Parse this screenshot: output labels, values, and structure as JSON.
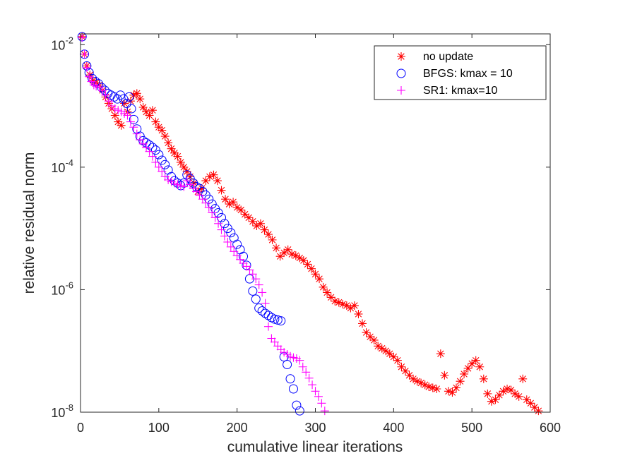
{
  "chart_data": {
    "type": "scatter",
    "title": "",
    "xlabel": "cumulative linear iterations",
    "ylabel": "relative residual norm",
    "xlim": [
      0,
      600
    ],
    "ylim": [
      1e-08,
      0.015
    ],
    "yscale": "log",
    "x_ticks": [
      0,
      100,
      200,
      300,
      400,
      500,
      600
    ],
    "x_tick_labels": [
      "0",
      "100",
      "200",
      "300",
      "400",
      "500",
      "600"
    ],
    "y_ticks": [
      {
        "value": 0.01,
        "base": "10",
        "exp": "-2"
      },
      {
        "value": 0.0001,
        "base": "10",
        "exp": "-4"
      },
      {
        "value": 1e-06,
        "base": "10",
        "exp": "-6"
      },
      {
        "value": 1e-08,
        "base": "10",
        "exp": "-8"
      }
    ],
    "grid": false,
    "legend_position": "top-right",
    "series": [
      {
        "name": "no update",
        "marker": "asterisk",
        "color": "#ff0000",
        "points": [
          [
            2,
            0.0135
          ],
          [
            5,
            0.007
          ],
          [
            8,
            0.0045
          ],
          [
            12,
            0.0032
          ],
          [
            16,
            0.0026
          ],
          [
            20,
            0.0024
          ],
          [
            24,
            0.0022
          ],
          [
            28,
            0.0018
          ],
          [
            32,
            0.0014
          ],
          [
            36,
            0.0011
          ],
          [
            40,
            0.0009
          ],
          [
            44,
            0.0007
          ],
          [
            48,
            0.00055
          ],
          [
            52,
            0.00048
          ],
          [
            56,
            0.0011
          ],
          [
            60,
            0.0008
          ],
          [
            64,
            0.0012
          ],
          [
            68,
            0.0015
          ],
          [
            72,
            0.0016
          ],
          [
            76,
            0.0013
          ],
          [
            80,
            0.00095
          ],
          [
            84,
            0.0008
          ],
          [
            88,
            0.0007
          ],
          [
            92,
            0.00085
          ],
          [
            96,
            0.00055
          ],
          [
            100,
            0.00045
          ],
          [
            104,
            0.0004
          ],
          [
            108,
            0.00032
          ],
          [
            112,
            0.00025
          ],
          [
            116,
            0.0002
          ],
          [
            120,
            0.00017
          ],
          [
            124,
            0.00015
          ],
          [
            128,
            0.00012
          ],
          [
            132,
            0.0001
          ],
          [
            136,
            8.5e-05
          ],
          [
            140,
            7e-05
          ],
          [
            145,
            5.5e-05
          ],
          [
            150,
            4e-05
          ],
          [
            155,
            4.5e-05
          ],
          [
            160,
            6e-05
          ],
          [
            165,
            7e-05
          ],
          [
            170,
            7.5e-05
          ],
          [
            175,
            6e-05
          ],
          [
            180,
            4.2e-05
          ],
          [
            185,
            3e-05
          ],
          [
            190,
            2.5e-05
          ],
          [
            195,
            2.7e-05
          ],
          [
            200,
            2.2e-05
          ],
          [
            205,
            2e-05
          ],
          [
            210,
            1.7e-05
          ],
          [
            215,
            1.5e-05
          ],
          [
            220,
            1.3e-05
          ],
          [
            225,
            1.1e-05
          ],
          [
            230,
            1.2e-05
          ],
          [
            235,
            9.5e-06
          ],
          [
            240,
            8e-06
          ],
          [
            245,
            6.5e-06
          ],
          [
            250,
            4.8e-06
          ],
          [
            255,
            3.5e-06
          ],
          [
            260,
            4e-06
          ],
          [
            265,
            4.5e-06
          ],
          [
            270,
            3.8e-06
          ],
          [
            275,
            3.6e-06
          ],
          [
            280,
            3.3e-06
          ],
          [
            285,
            3e-06
          ],
          [
            290,
            2.6e-06
          ],
          [
            295,
            2.2e-06
          ],
          [
            300,
            1.8e-06
          ],
          [
            305,
            1.5e-06
          ],
          [
            310,
            1.1e-06
          ],
          [
            315,
            9e-07
          ],
          [
            320,
            7.5e-07
          ],
          [
            325,
            6.5e-07
          ],
          [
            330,
            6.2e-07
          ],
          [
            335,
            5.8e-07
          ],
          [
            340,
            5.5e-07
          ],
          [
            345,
            5e-07
          ],
          [
            350,
            5.5e-07
          ],
          [
            355,
            4e-07
          ],
          [
            360,
            2.8e-07
          ],
          [
            365,
            2e-07
          ],
          [
            370,
            1.7e-07
          ],
          [
            375,
            1.5e-07
          ],
          [
            380,
            1.2e-07
          ],
          [
            385,
            1.1e-07
          ],
          [
            390,
            1e-07
          ],
          [
            395,
            9e-08
          ],
          [
            400,
            8e-08
          ],
          [
            405,
            7e-08
          ],
          [
            410,
            5.5e-08
          ],
          [
            415,
            4.7e-08
          ],
          [
            420,
            4e-08
          ],
          [
            425,
            3.5e-08
          ],
          [
            430,
            3.2e-08
          ],
          [
            435,
            3e-08
          ],
          [
            440,
            2.8e-08
          ],
          [
            445,
            2.6e-08
          ],
          [
            450,
            2.5e-08
          ],
          [
            455,
            2.4e-08
          ],
          [
            460,
            9e-08
          ],
          [
            465,
            4e-08
          ],
          [
            470,
            2.2e-08
          ],
          [
            475,
            2.1e-08
          ],
          [
            480,
            2.5e-08
          ],
          [
            485,
            3.2e-08
          ],
          [
            490,
            4.2e-08
          ],
          [
            495,
            5.2e-08
          ],
          [
            500,
            6.2e-08
          ],
          [
            505,
            7e-08
          ],
          [
            510,
            5.5e-08
          ],
          [
            515,
            3.5e-08
          ],
          [
            520,
            2e-08
          ],
          [
            525,
            1.5e-08
          ],
          [
            530,
            1.6e-08
          ],
          [
            535,
            1.9e-08
          ],
          [
            540,
            2.2e-08
          ],
          [
            545,
            2.4e-08
          ],
          [
            550,
            2.3e-08
          ],
          [
            555,
            2e-08
          ],
          [
            560,
            1.8e-08
          ],
          [
            565,
            3.5e-08
          ],
          [
            570,
            1.6e-08
          ],
          [
            575,
            1.4e-08
          ],
          [
            580,
            1.2e-08
          ],
          [
            585,
            1.05e-08
          ]
        ]
      },
      {
        "name": "BFGS: kmax = 10",
        "marker": "circle",
        "color": "#0000ff",
        "points": [
          [
            2,
            0.0135
          ],
          [
            5,
            0.007
          ],
          [
            8,
            0.0045
          ],
          [
            11,
            0.0035
          ],
          [
            15,
            0.0028
          ],
          [
            19,
            0.0025
          ],
          [
            23,
            0.0023
          ],
          [
            27,
            0.002
          ],
          [
            31,
            0.0018
          ],
          [
            35,
            0.0016
          ],
          [
            39,
            0.0015
          ],
          [
            43,
            0.0014
          ],
          [
            47,
            0.0013
          ],
          [
            51,
            0.0015
          ],
          [
            55,
            0.0013
          ],
          [
            59,
            0.0011
          ],
          [
            62,
            0.0014
          ],
          [
            65,
            0.0009
          ],
          [
            68,
            0.0006
          ],
          [
            72,
            0.00042
          ],
          [
            76,
            0.00032
          ],
          [
            80,
            0.00027
          ],
          [
            84,
            0.00025
          ],
          [
            88,
            0.00023
          ],
          [
            92,
            0.00021
          ],
          [
            96,
            0.00019
          ],
          [
            100,
            0.00016
          ],
          [
            104,
            0.00013
          ],
          [
            108,
            0.00011
          ],
          [
            112,
            9e-05
          ],
          [
            116,
            7e-05
          ],
          [
            120,
            6e-05
          ],
          [
            124,
            5.5e-05
          ],
          [
            128,
            5e-05
          ],
          [
            132,
            5.5e-05
          ],
          [
            136,
            7.5e-05
          ],
          [
            140,
            6.5e-05
          ],
          [
            144,
            5.5e-05
          ],
          [
            148,
            4.8e-05
          ],
          [
            152,
            4.5e-05
          ],
          [
            156,
            4e-05
          ],
          [
            160,
            3.5e-05
          ],
          [
            164,
            3e-05
          ],
          [
            168,
            2.5e-05
          ],
          [
            172,
            2.1e-05
          ],
          [
            176,
            1.8e-05
          ],
          [
            180,
            1.5e-05
          ],
          [
            184,
            1.2e-05
          ],
          [
            188,
            1e-05
          ],
          [
            192,
            8.5e-06
          ],
          [
            196,
            7e-06
          ],
          [
            200,
            5.5e-06
          ],
          [
            204,
            4.5e-06
          ],
          [
            208,
            3.5e-06
          ],
          [
            212,
            2.5e-06
          ],
          [
            216,
            1.5e-06
          ],
          [
            220,
            9.5e-07
          ],
          [
            224,
            7e-07
          ],
          [
            228,
            5e-07
          ],
          [
            232,
            4.5e-07
          ],
          [
            236,
            4.1e-07
          ],
          [
            240,
            3.8e-07
          ],
          [
            244,
            3.5e-07
          ],
          [
            248,
            3.3e-07
          ],
          [
            252,
            3.2e-07
          ],
          [
            256,
            3.1e-07
          ],
          [
            260,
            8e-08
          ],
          [
            264,
            6e-08
          ],
          [
            268,
            3.5e-08
          ],
          [
            272,
            2.4e-08
          ],
          [
            276,
            1.3e-08
          ],
          [
            280,
            1.05e-08
          ]
        ]
      },
      {
        "name": "SR1: kmax=10",
        "marker": "plus",
        "color": "#ff00ff",
        "points": [
          [
            2,
            0.013
          ],
          [
            5,
            0.007
          ],
          [
            8,
            0.0042
          ],
          [
            11,
            0.003
          ],
          [
            14,
            0.0025
          ],
          [
            17,
            0.0022
          ],
          [
            20,
            0.0021
          ],
          [
            24,
            0.002
          ],
          [
            28,
            0.0018
          ],
          [
            32,
            0.0015
          ],
          [
            36,
            0.0012
          ],
          [
            40,
            0.001
          ],
          [
            44,
            0.0009
          ],
          [
            48,
            0.00085
          ],
          [
            52,
            0.0008
          ],
          [
            56,
            0.00075
          ],
          [
            60,
            0.0007
          ],
          [
            64,
            0.00055
          ],
          [
            68,
            0.00045
          ],
          [
            72,
            0.00035
          ],
          [
            76,
            0.00028
          ],
          [
            80,
            0.00024
          ],
          [
            84,
            0.00021
          ],
          [
            88,
            0.00018
          ],
          [
            92,
            0.00015
          ],
          [
            96,
            0.00012
          ],
          [
            100,
            0.0001
          ],
          [
            104,
            8.5e-05
          ],
          [
            108,
            7e-05
          ],
          [
            112,
            6.2e-05
          ],
          [
            116,
            5.8e-05
          ],
          [
            120,
            5.5e-05
          ],
          [
            124,
            5.2e-05
          ],
          [
            128,
            5e-05
          ],
          [
            132,
            4.8e-05
          ],
          [
            136,
            6e-05
          ],
          [
            140,
            5.2e-05
          ],
          [
            144,
            4.5e-05
          ],
          [
            148,
            4e-05
          ],
          [
            152,
            3.5e-05
          ],
          [
            156,
            3e-05
          ],
          [
            160,
            2.6e-05
          ],
          [
            164,
            2.2e-05
          ],
          [
            168,
            1.8e-05
          ],
          [
            172,
            1.5e-05
          ],
          [
            176,
            1.2e-05
          ],
          [
            180,
            9.5e-06
          ],
          [
            184,
            7.5e-06
          ],
          [
            188,
            6e-06
          ],
          [
            192,
            5e-06
          ],
          [
            196,
            4.2e-06
          ],
          [
            200,
            3.6e-06
          ],
          [
            204,
            3.1e-06
          ],
          [
            208,
            2.7e-06
          ],
          [
            212,
            2.4e-06
          ],
          [
            216,
            2.1e-06
          ],
          [
            220,
            1.8e-06
          ],
          [
            224,
            1.5e-06
          ],
          [
            228,
            1.2e-06
          ],
          [
            232,
            9e-07
          ],
          [
            236,
            6e-07
          ],
          [
            240,
            2.5e-07
          ],
          [
            244,
            1.6e-07
          ],
          [
            248,
            1.4e-07
          ],
          [
            252,
            1.2e-07
          ],
          [
            256,
            1.05e-07
          ],
          [
            260,
            9.5e-08
          ],
          [
            264,
            8.8e-08
          ],
          [
            268,
            8.2e-08
          ],
          [
            272,
            7.8e-08
          ],
          [
            276,
            7.5e-08
          ],
          [
            280,
            7e-08
          ],
          [
            284,
            5.5e-08
          ],
          [
            288,
            4.5e-08
          ],
          [
            292,
            3.6e-08
          ],
          [
            296,
            2.8e-08
          ],
          [
            300,
            2.2e-08
          ],
          [
            304,
            1.8e-08
          ],
          [
            308,
            1.4e-08
          ],
          [
            312,
            1.05e-08
          ]
        ]
      }
    ]
  }
}
